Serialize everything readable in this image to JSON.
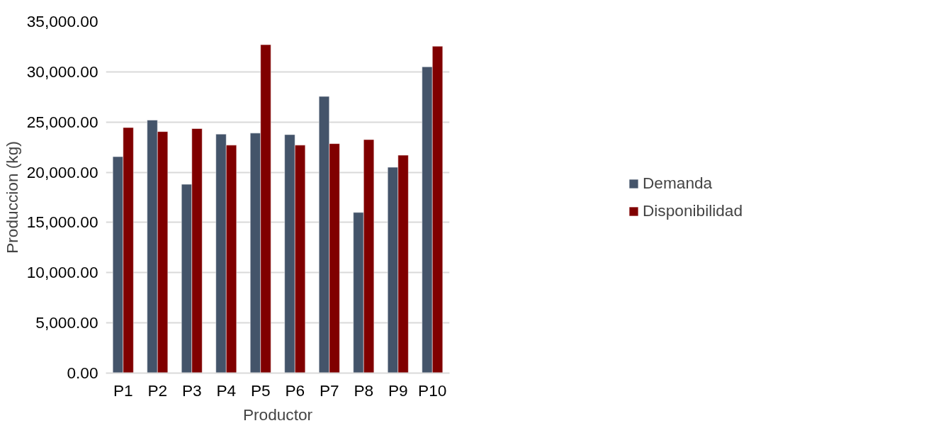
{
  "chart_data": {
    "type": "bar",
    "xlabel": "Productor",
    "ylabel": "Produccion (kg)",
    "categories": [
      "P1",
      "P2",
      "P3",
      "P4",
      "P5",
      "P6",
      "P7",
      "P8",
      "P9",
      "P10"
    ],
    "series": [
      {
        "name": "Demanda",
        "color": "#44546a",
        "values": [
          21550,
          25200,
          18800,
          23800,
          23900,
          23750,
          27550,
          16000,
          20500,
          30500
        ]
      },
      {
        "name": "Disponibilidad",
        "color": "#800000",
        "values": [
          24450,
          24050,
          24350,
          22700,
          32700,
          22700,
          22850,
          23250,
          21700,
          32550
        ]
      }
    ],
    "ylim": [
      0,
      35000
    ],
    "yticks": [
      {
        "value": 0,
        "label": "0.00"
      },
      {
        "value": 5000,
        "label": "5,000.00"
      },
      {
        "value": 10000,
        "label": "10,000.00"
      },
      {
        "value": 15000,
        "label": "15,000.00"
      },
      {
        "value": 20000,
        "label": "20,000.00"
      },
      {
        "value": 25000,
        "label": "25,000.00"
      },
      {
        "value": 30000,
        "label": "30,000.00"
      },
      {
        "value": 35000,
        "label": "35,000.00"
      }
    ],
    "grid": "y",
    "legend": "right"
  }
}
